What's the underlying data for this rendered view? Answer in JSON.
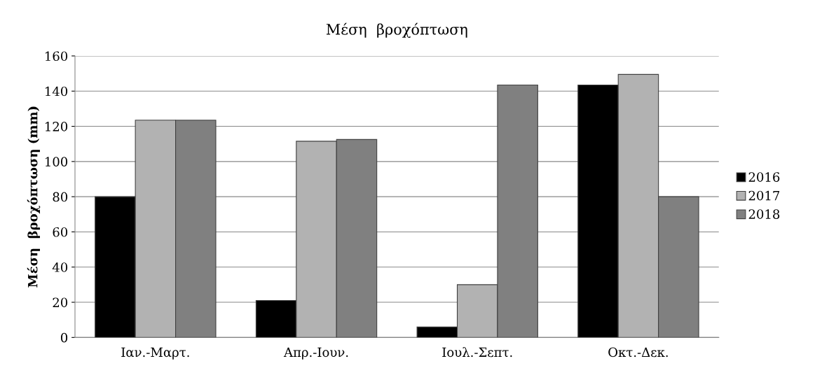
{
  "chart_data": {
    "type": "bar",
    "title": "Μέση  βροχόπτωση",
    "ylabel": "Μέση  βροχόπτωση (mm)",
    "categories": [
      "Ιαν.-Μαρτ.",
      "Απρ.-Ιουν.",
      "Ιουλ.-Σεπτ.",
      "Οκτ.-Δεκ."
    ],
    "series": [
      {
        "name": "2016",
        "color": "#000000",
        "values": [
          80,
          21,
          6,
          143.5
        ]
      },
      {
        "name": "2017",
        "color": "#b2b2b2",
        "values": [
          123.5,
          111.5,
          30,
          149.5
        ]
      },
      {
        "name": "2018",
        "color": "#808080",
        "values": [
          123.5,
          112.5,
          143.5,
          80
        ]
      }
    ],
    "ylim": [
      0,
      160
    ],
    "yticks": [
      0,
      20,
      40,
      60,
      80,
      100,
      120,
      140,
      160
    ],
    "grid": "y",
    "legend": "right"
  }
}
